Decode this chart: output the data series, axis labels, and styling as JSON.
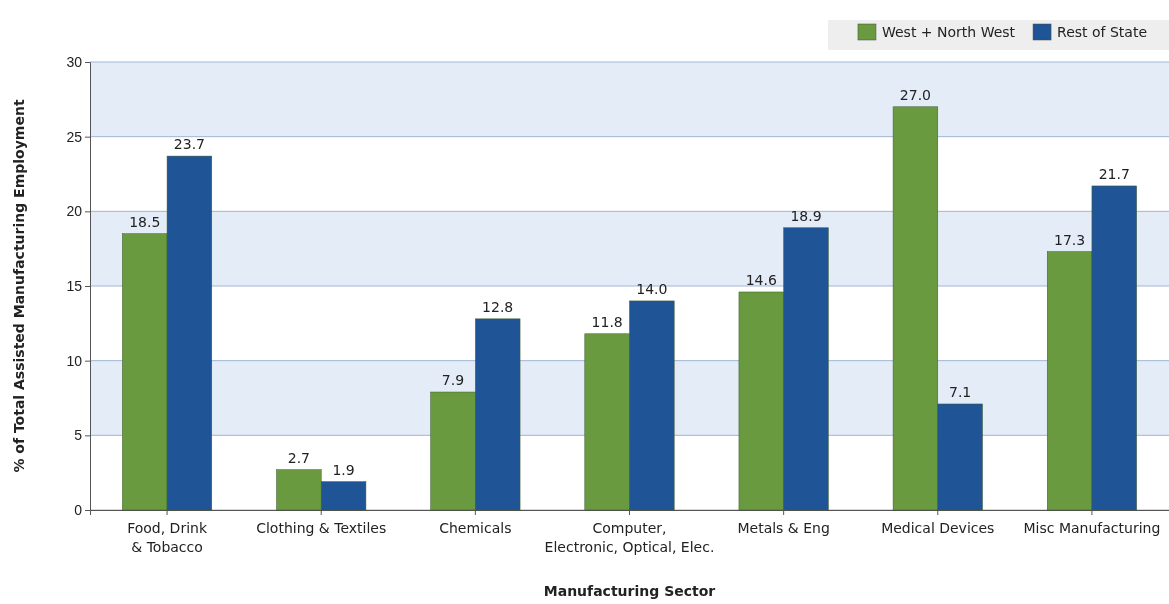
{
  "chart_data": {
    "type": "bar",
    "xlabel": "Manufacturing Sector",
    "ylabel": "% of Total Assisted Manufacturing Employment",
    "categories": [
      "Food, Drink\n& Tobacco",
      "Clothing & Textiles",
      "Chemicals",
      "Computer,\nElectronic, Optical, Elec.",
      "Metals & Eng",
      "Medical Devices",
      "Misc Manufacturing"
    ],
    "series": [
      {
        "name": "West + North West",
        "color": "#6a9a3f",
        "values": [
          18.5,
          2.7,
          7.9,
          11.8,
          14.6,
          27.0,
          17.3
        ]
      },
      {
        "name": "Rest of State",
        "color": "#1f5596",
        "values": [
          23.7,
          1.9,
          12.8,
          14.0,
          18.9,
          7.1,
          21.7
        ]
      }
    ],
    "ylim": [
      0,
      30
    ],
    "yticks": [
      0,
      5,
      10,
      15,
      20,
      25,
      30
    ],
    "grid": "y",
    "legend": "top right",
    "value_labels": [
      [
        "18.5",
        "2.7",
        "7.9",
        "11.8",
        "14.6",
        "27.0",
        "17.3"
      ],
      [
        "23.7",
        "1.9",
        "12.8",
        "14.0",
        "18.9",
        "7.1",
        "21.7"
      ]
    ]
  }
}
